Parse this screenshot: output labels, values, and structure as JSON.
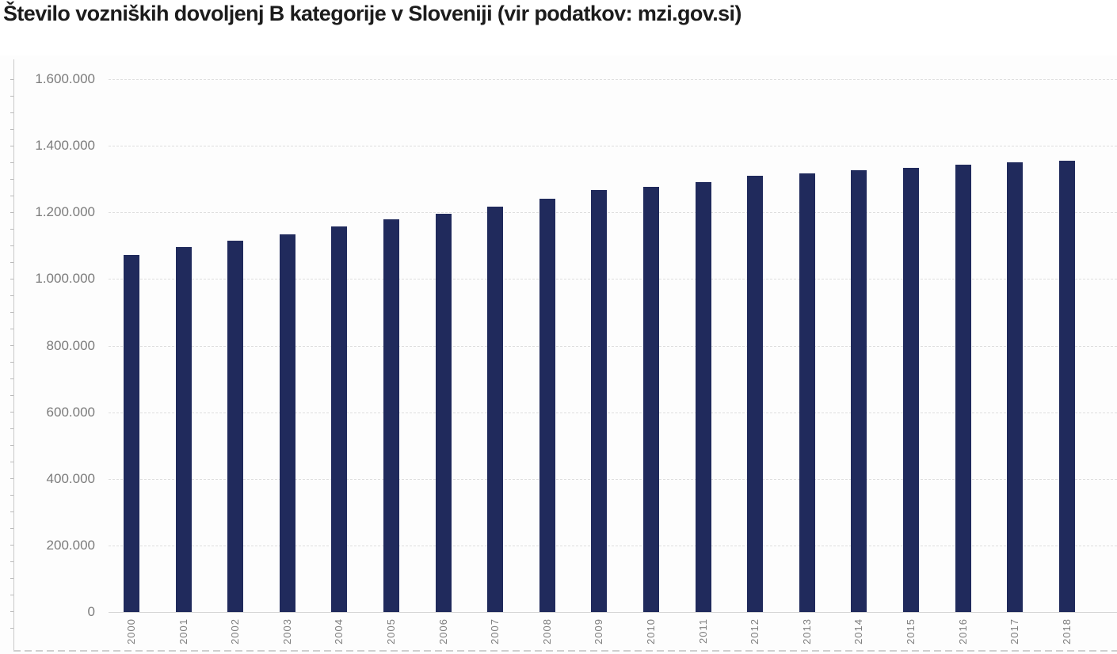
{
  "title": "Število vozniških dovoljenj B kategorije v Sloveniji (vir podatkov: mzi.gov.si)",
  "chart_data": {
    "type": "bar",
    "title": "Število vozniških dovoljenj B kategorije v Sloveniji (vir podatkov: mzi.gov.si)",
    "source": "mzi.gov.si",
    "categories": [
      "2000",
      "2001",
      "2002",
      "2003",
      "2004",
      "2005",
      "2006",
      "2007",
      "2008",
      "2009",
      "2010",
      "2011",
      "2012",
      "2013",
      "2014",
      "2015",
      "2016",
      "2017",
      "2018"
    ],
    "values": [
      1072000,
      1097000,
      1116000,
      1133000,
      1157000,
      1179000,
      1196000,
      1218000,
      1240000,
      1267000,
      1276000,
      1291000,
      1309000,
      1317000,
      1327000,
      1334000,
      1344000,
      1350000,
      1355000
    ],
    "xlabel": "",
    "ylabel": "",
    "ylim": [
      0,
      1600000
    ],
    "ytick_values": [
      0,
      200000,
      400000,
      600000,
      800000,
      1000000,
      1200000,
      1400000,
      1600000
    ],
    "ytick_labels": [
      "0",
      "200.000",
      "400.000",
      "600.000",
      "800.000",
      "1.000.000",
      "1.200.000",
      "1.400.000",
      "1.600.000"
    ],
    "grid": true,
    "legend": false,
    "bar_color": "#202a5c",
    "axis_label_color": "#7b7b7b",
    "gridline_color": "#dedede",
    "title_color": "#1c1c1c"
  }
}
